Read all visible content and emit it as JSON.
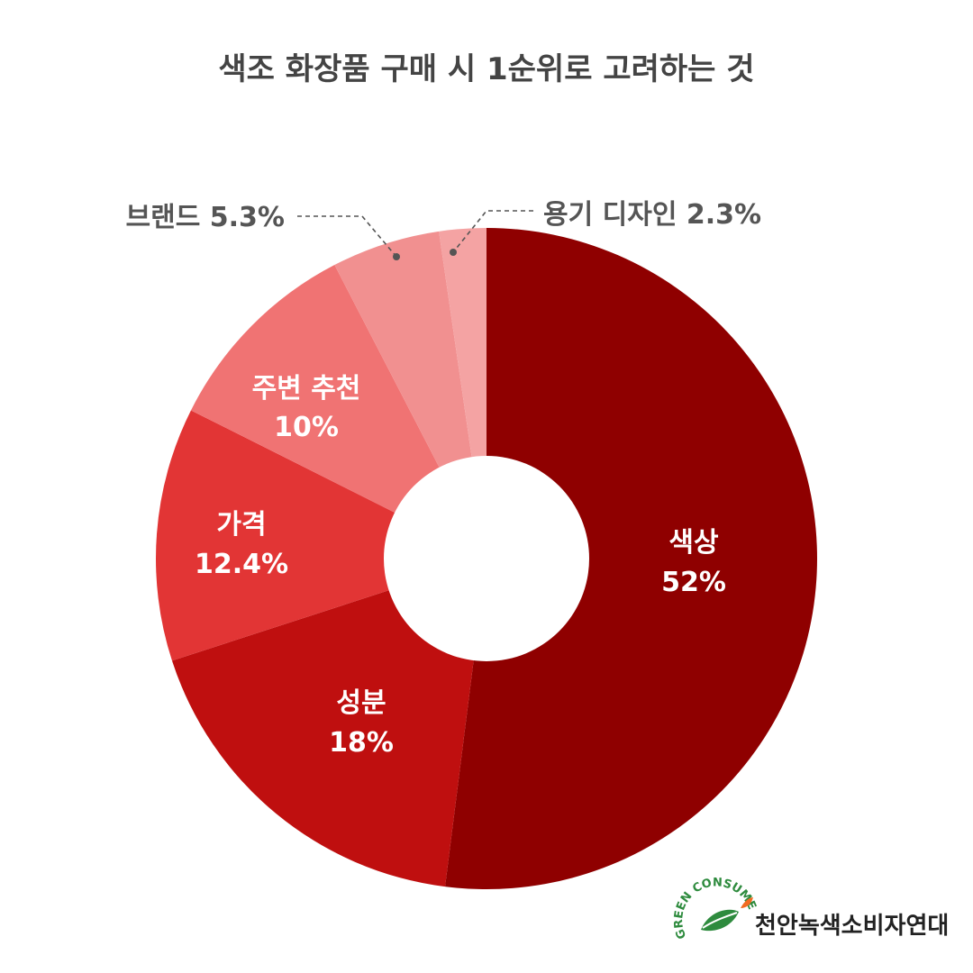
{
  "chart_data": {
    "type": "pie",
    "title": "색조 화장품 구매 시 1순위로 고려하는 것",
    "slices": [
      {
        "label": "색상",
        "value": 52,
        "value_label": "52%",
        "color": "#8f0000"
      },
      {
        "label": "성분",
        "value": 18,
        "value_label": "18%",
        "color": "#bf0f0f"
      },
      {
        "label": "가격",
        "value": 12.4,
        "value_label": "12.4%",
        "color": "#e23535"
      },
      {
        "label": "주변 추천",
        "value": 10,
        "value_label": "10%",
        "color": "#f07373"
      },
      {
        "label": "브랜드",
        "value": 5.3,
        "value_label": "5.3%",
        "color": "#f19090"
      },
      {
        "label": "용기 디자인",
        "value": 2.3,
        "value_label": "2.3%",
        "color": "#f4a3a3"
      }
    ],
    "style": "donut",
    "start_angle": "12 o'clock",
    "direction": "clockwise"
  },
  "outside_labels": {
    "brand": "브랜드 5.3%",
    "container": "용기 디자인 2.3%"
  },
  "logo": {
    "arc_text": "GREEN CONSUMER",
    "name": "천안녹색소비자연대",
    "icon": "leaf-icon",
    "colors": {
      "green": "#2e8b3e",
      "orange": "#f26b21"
    }
  }
}
